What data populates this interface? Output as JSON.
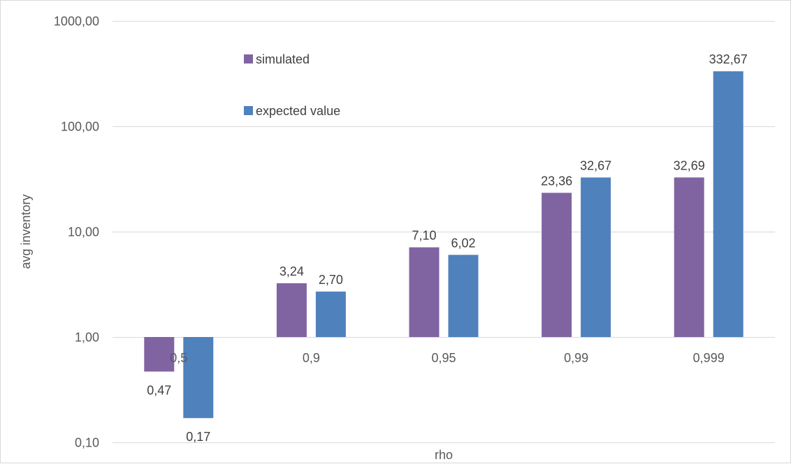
{
  "chart_data": {
    "type": "bar",
    "xlabel": "rho",
    "ylabel": "avg inventory",
    "yscale": "log",
    "baseline": 1,
    "ylim": [
      0.1,
      1000
    ],
    "yticks": [
      {
        "value": 0.1,
        "label": "0,10"
      },
      {
        "value": 1,
        "label": "1,00"
      },
      {
        "value": 10,
        "label": "10,00"
      },
      {
        "value": 100,
        "label": "100,00"
      },
      {
        "value": 1000,
        "label": "1000,00"
      }
    ],
    "categories": [
      "0,5",
      "0,9",
      "0,95",
      "0,99",
      "0,999"
    ],
    "series": [
      {
        "name": "simulated",
        "color": "#8064a2",
        "values": [
          0.47,
          3.24,
          7.1,
          23.36,
          32.69
        ],
        "labels": [
          "0,47",
          "3,24",
          "7,10",
          "23,36",
          "32,69"
        ]
      },
      {
        "name": "expected value",
        "color": "#4f81bd",
        "values": [
          0.17,
          2.7,
          6.02,
          32.67,
          332.67
        ],
        "labels": [
          "0,17",
          "2,70",
          "6,02",
          "32,67",
          "332,67"
        ]
      }
    ],
    "grid": true,
    "gridColor": "#d9d9d9",
    "legend": "top-left, inside plot area"
  }
}
